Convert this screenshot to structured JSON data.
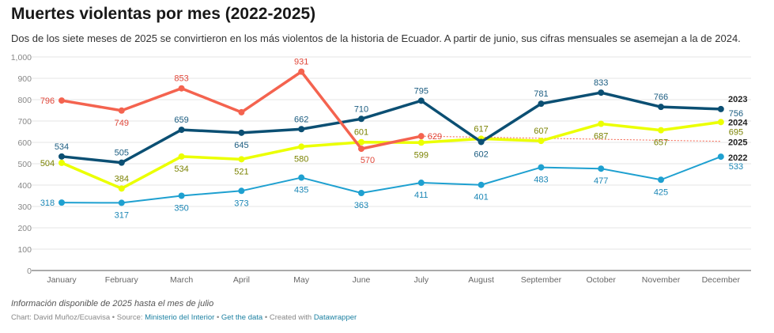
{
  "title": "Muertes violentas por mes (2022-2025)",
  "subtitle": "Dos de los siete meses de 2025 se convirtieron en los más violentos de la historia de Ecuador. A partir de junio, sus cifras mensuales se asemejan a la de 2024.",
  "note": "Información disponible de 2025 hasta el mes de julio",
  "credit": {
    "chart": "Chart: David Muñoz/Ecuavisa",
    "source_label": "Source:",
    "source": "Ministerio del Interior",
    "get_data": "Get the data",
    "created": "Created with",
    "tool": "Datawrapper",
    "sep": "•"
  },
  "chart_data": {
    "type": "line",
    "categories": [
      "January",
      "February",
      "March",
      "April",
      "May",
      "June",
      "July",
      "August",
      "September",
      "October",
      "November",
      "December"
    ],
    "ylim": [
      0,
      1000
    ],
    "yticks": [
      0,
      100,
      200,
      300,
      400,
      500,
      600,
      700,
      800,
      900,
      1000
    ],
    "ytick_labels": [
      "0",
      "100",
      "200",
      "300",
      "400",
      "500",
      "600",
      "700",
      "800",
      "900",
      "1,000"
    ],
    "grid": true,
    "series": [
      {
        "name": "2022",
        "color": "#1ea0d0",
        "label_color": "#1a86b5",
        "values": [
          318,
          317,
          350,
          373,
          435,
          363,
          411,
          401,
          483,
          477,
          425,
          533
        ]
      },
      {
        "name": "2024",
        "color": "#ebff00",
        "label_color": "#7a8200",
        "values": [
          504,
          384,
          534,
          521,
          580,
          601,
          599,
          617,
          607,
          687,
          657,
          695
        ]
      },
      {
        "name": "2023",
        "color": "#0b4f73",
        "label_color": "#1b5c80",
        "values": [
          534,
          505,
          659,
          645,
          662,
          710,
          795,
          602,
          781,
          833,
          766,
          756
        ]
      },
      {
        "name": "2025",
        "color": "#f4634f",
        "label_color": "#e0473a",
        "values": [
          796,
          749,
          853,
          741,
          931,
          570,
          629,
          null,
          null,
          null,
          null,
          null
        ],
        "shown_labels": [
          796,
          749,
          853,
          null,
          931,
          570,
          629
        ],
        "trend_end": 605
      }
    ]
  }
}
